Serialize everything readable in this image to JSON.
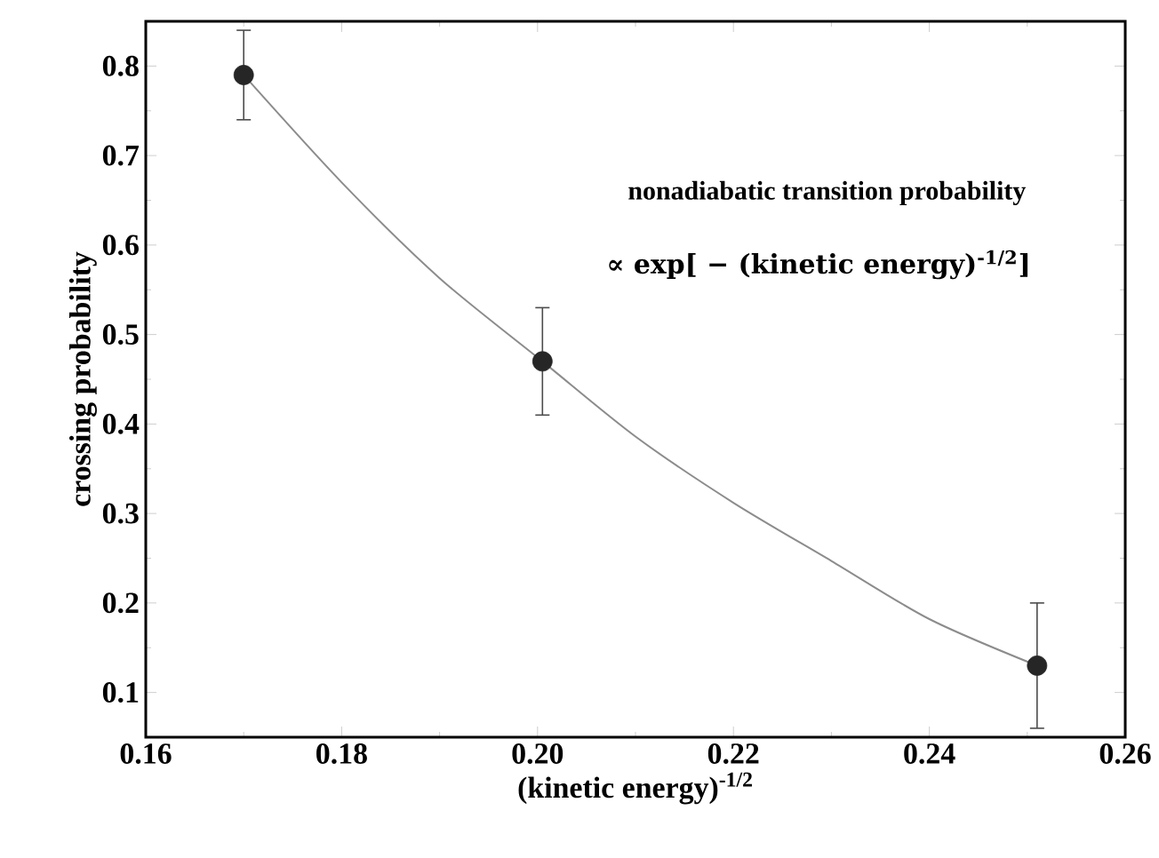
{
  "chart_data": {
    "type": "scatter",
    "xlabel": "(kinetic energy)$^{-1/2}$",
    "ylabel": "crossing probability",
    "x": [
      0.17,
      0.2005,
      0.251
    ],
    "series": [
      {
        "color": "#262626",
        "marker": "circle",
        "values": [
          0.79,
          0.47,
          0.13
        ],
        "errors": [
          [
            0.74,
            0.84
          ],
          [
            0.41,
            0.53
          ],
          [
            0.06,
            0.2
          ]
        ]
      },
      {
        "type": "line",
        "color": "#8c8c8c",
        "marker": "none",
        "x": [
          0.17,
          0.18,
          0.19,
          0.2005,
          0.21,
          0.22,
          0.23,
          0.24,
          0.251
        ],
        "values": [
          0.79,
          0.67,
          0.563,
          0.47,
          0.386,
          0.312,
          0.247,
          0.182,
          0.13
        ]
      }
    ],
    "xlim": [
      0.16,
      0.26
    ],
    "xticks": [
      0.16,
      0.18,
      {
        "value": 0.2,
        "label": "0.20"
      },
      0.22,
      0.24,
      0.26
    ],
    "ylim": [
      0.05,
      0.85
    ],
    "yticks": [
      0.1,
      0.2,
      0.3,
      0.4,
      0.5,
      0.6,
      0.7,
      0.8
    ],
    "annotations": [
      "nonadiabatic transition probability",
      "∝  exp[ − (kinetic energy)$^{-1/2}$]"
    ]
  }
}
